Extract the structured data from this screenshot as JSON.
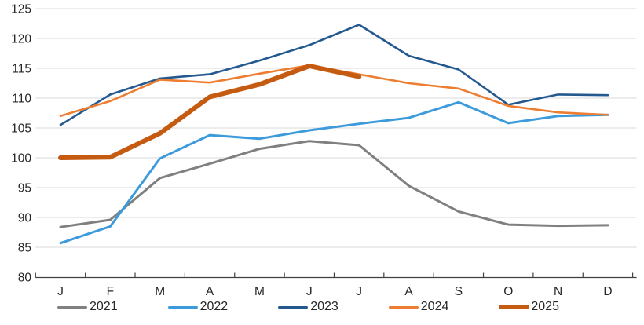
{
  "chart_data": {
    "type": "line",
    "title": "",
    "xlabel": "",
    "ylabel": "",
    "categories": [
      "J",
      "F",
      "M",
      "A",
      "M",
      "J",
      "J",
      "A",
      "S",
      "O",
      "N",
      "D"
    ],
    "series": [
      {
        "name": "2021",
        "color": "#808080",
        "width": 3,
        "values": [
          88.4,
          89.6,
          96.6,
          99.0,
          101.5,
          102.8,
          102.1,
          95.3,
          91.0,
          88.8,
          88.6,
          88.7
        ]
      },
      {
        "name": "2022",
        "color": "#3D9BDC",
        "width": 3,
        "values": [
          85.7,
          88.5,
          99.9,
          103.8,
          103.2,
          104.6,
          105.7,
          106.7,
          109.3,
          105.8,
          107.0,
          107.2
        ]
      },
      {
        "name": "2023",
        "color": "#24598F",
        "width": 2.6,
        "values": [
          105.5,
          110.6,
          113.3,
          114.0,
          116.3,
          118.9,
          122.3,
          117.1,
          114.8,
          108.9,
          110.6,
          110.5
        ]
      },
      {
        "name": "2024",
        "color": "#ED7D31",
        "width": 2.6,
        "values": [
          107.0,
          109.5,
          113.1,
          112.6,
          114.1,
          115.5,
          114.0,
          112.5,
          111.6,
          108.7,
          107.6,
          107.2
        ]
      },
      {
        "name": "2025",
        "color": "#C55A11",
        "width": 6,
        "values": [
          100.0,
          100.1,
          104.1,
          110.2,
          112.3,
          115.4,
          113.6
        ]
      }
    ],
    "ylim": [
      80,
      125
    ],
    "ytick_step": 5,
    "ytick_labels": [
      "80",
      "85",
      "90",
      "95",
      "100",
      "105",
      "110",
      "115",
      "120",
      "125"
    ],
    "grid": "horizontal",
    "legend_position": "bottom",
    "colors": {
      "gridline": "#D9D9D9",
      "axis_line": "#404040",
      "tick_mark": "#404040",
      "label_text": "#262626"
    }
  }
}
